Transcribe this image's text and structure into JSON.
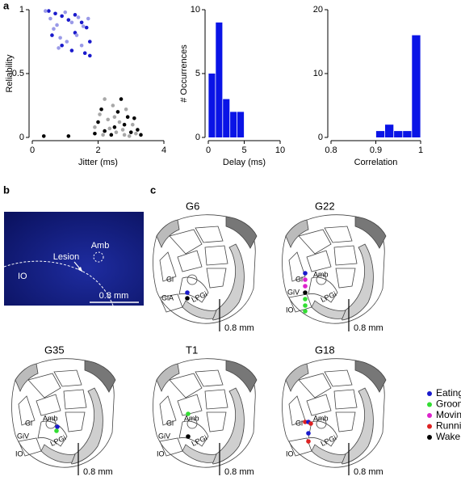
{
  "panel_labels": [
    "a",
    "b",
    "c"
  ],
  "chart_data": [
    {
      "type": "scatter",
      "xlabel": "Jitter (ms)",
      "ylabel": "Reliability",
      "xlim": [
        0,
        4
      ],
      "ylim": [
        0,
        1
      ],
      "xticks": [
        0,
        2,
        4
      ],
      "yticks": [
        0,
        0.5,
        1
      ],
      "series": [
        {
          "color": "#1a1acc",
          "x": [
            0.5,
            0.7,
            0.9,
            1.1,
            1.3,
            1.5,
            1.65,
            1.75,
            0.9,
            1.2,
            0.6,
            1.6,
            1.75,
            1.3
          ],
          "values": [
            0.99,
            0.97,
            0.95,
            0.92,
            0.96,
            0.9,
            0.86,
            0.75,
            0.72,
            0.68,
            0.8,
            0.66,
            0.64,
            0.82
          ]
        },
        {
          "color": "#9a9ae8",
          "x": [
            0.4,
            0.55,
            0.75,
            1.0,
            1.2,
            1.4,
            1.55,
            0.65,
            0.85,
            1.05,
            1.5,
            0.8,
            1.35,
            1.7
          ],
          "values": [
            0.99,
            0.93,
            0.88,
            0.98,
            0.9,
            0.94,
            0.87,
            0.85,
            0.78,
            0.75,
            0.72,
            0.7,
            0.8,
            0.93
          ]
        },
        {
          "color": "#000000",
          "x": [
            0.35,
            1.1,
            2.0,
            2.2,
            2.4,
            2.6,
            2.8,
            3.0,
            3.1,
            3.3,
            2.7,
            2.1,
            2.5,
            2.9,
            3.2,
            1.9
          ],
          "values": [
            0.01,
            0.01,
            0.12,
            0.05,
            0.02,
            0.2,
            0.1,
            0.04,
            0.15,
            0.02,
            0.3,
            0.22,
            0.08,
            0.16,
            0.06,
            0.03
          ]
        },
        {
          "color": "#a8a8a8",
          "x": [
            1.9,
            2.05,
            2.15,
            2.3,
            2.45,
            2.55,
            2.65,
            2.75,
            2.85,
            2.95,
            3.05,
            2.35,
            2.2,
            3.15,
            2.5,
            2.8
          ],
          "values": [
            0.08,
            0.18,
            0.02,
            0.14,
            0.25,
            0.04,
            0.12,
            0.06,
            0.22,
            0.01,
            0.1,
            0.07,
            0.3,
            0.03,
            0.16,
            0.02
          ]
        }
      ]
    },
    {
      "type": "histogram",
      "xlabel": "Delay (ms)",
      "ylabel": "# Occurrences",
      "color": "#0a14e6",
      "bins": [
        0,
        1,
        2,
        3,
        4,
        5
      ],
      "values": [
        5,
        9,
        3,
        2,
        2
      ],
      "xlim": [
        0,
        10
      ],
      "ylim": [
        0,
        10
      ],
      "xticks": [
        0,
        5,
        10
      ],
      "yticks": [
        0,
        5,
        10
      ]
    },
    {
      "type": "histogram",
      "xlabel": "Correlation",
      "color": "#0a14e6",
      "bins": [
        0.9,
        0.92,
        0.94,
        0.96,
        0.98,
        1.0
      ],
      "values": [
        1,
        2,
        1,
        1,
        16
      ],
      "xlim": [
        0.8,
        1
      ],
      "ylim": [
        0,
        20
      ],
      "xticks": [
        0.8,
        0.9,
        1
      ],
      "yticks": [
        0,
        10,
        20
      ]
    }
  ],
  "image_panel": {
    "labels": [
      "Amb",
      "Lesion",
      "IO"
    ],
    "scale_bar": "0.8 mm"
  },
  "diagrams": [
    {
      "title": "G6",
      "labels": [
        "Gi",
        "GiA",
        "LPGi"
      ],
      "scale_bar": "0.8 mm"
    },
    {
      "title": "G22",
      "labels": [
        "Gi",
        "Amb",
        "GiV",
        "IO",
        "LPGi"
      ],
      "scale_bar": "0.8 mm"
    },
    {
      "title": "G35",
      "labels": [
        "Gi",
        "Amb",
        "GiV",
        "IO",
        "LPGi"
      ],
      "scale_bar": "0.8 mm"
    },
    {
      "title": "T1",
      "labels": [
        "Gi",
        "Amb",
        "GiV",
        "IO",
        "LPGi"
      ],
      "scale_bar": "0.8 mm"
    },
    {
      "title": "G18",
      "labels": [
        "Gi",
        "Amb",
        "IO",
        "LPGi"
      ],
      "scale_bar": "0.8 mm"
    }
  ],
  "legend": [
    {
      "name": "Eating",
      "color": "#1a1acc"
    },
    {
      "name": "Grooming",
      "color": "#33dd33"
    },
    {
      "name": "Moving",
      "color": "#dd22cc"
    },
    {
      "name": "Running",
      "color": "#dd2222"
    },
    {
      "name": "Wake incomp",
      "color": "#000000"
    }
  ]
}
